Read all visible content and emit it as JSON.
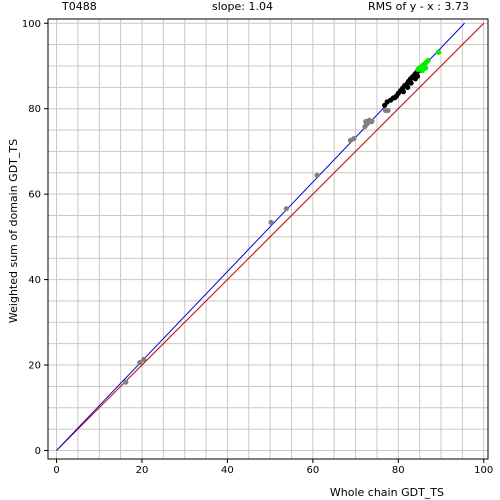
{
  "header": {
    "id_label": "T0488",
    "slope_label": "slope: 1.04",
    "rms_label": "RMS of  y - x : 3.73"
  },
  "chart_data": {
    "type": "scatter",
    "xlabel": "Whole chain GDT_TS",
    "ylabel": "Weighted sum of domain GDT_TS",
    "xlim": [
      -2,
      101
    ],
    "ylim": [
      -2,
      101
    ],
    "x_ticks": [
      0,
      20,
      40,
      60,
      80,
      100
    ],
    "y_ticks": [
      0,
      20,
      40,
      60,
      80,
      100
    ],
    "grid": true,
    "minor_grid_step": 5,
    "diagonal_line": {
      "from": [
        0,
        0
      ],
      "to": [
        100,
        100
      ],
      "color": "#cc0000"
    },
    "fit_line": {
      "from": [
        0,
        0
      ],
      "to": [
        95.5,
        100
      ],
      "slope": 1.04,
      "color": "#0000cc"
    },
    "series": [
      {
        "color": "#808080",
        "points": [
          [
            16.2,
            16.0
          ],
          [
            19.5,
            20.6
          ],
          [
            20.4,
            21.3
          ],
          [
            50.2,
            53.4
          ],
          [
            53.8,
            56.6
          ],
          [
            61.0,
            64.4
          ],
          [
            68.8,
            72.6
          ],
          [
            69.6,
            73.0
          ],
          [
            72.2,
            75.8
          ],
          [
            72.6,
            76.4
          ],
          [
            73.0,
            76.8
          ],
          [
            72.4,
            77.0
          ],
          [
            73.2,
            77.3
          ],
          [
            73.8,
            77.0
          ],
          [
            77.0,
            79.6
          ],
          [
            77.6,
            79.6
          ]
        ]
      },
      {
        "color": "#000000",
        "points": [
          [
            76.8,
            80.8
          ],
          [
            77.4,
            81.6
          ],
          [
            78.2,
            82.0
          ],
          [
            78.8,
            82.5
          ],
          [
            79.6,
            83.0
          ],
          [
            80.0,
            83.6
          ],
          [
            80.5,
            84.2
          ],
          [
            81.0,
            84.8
          ],
          [
            81.5,
            85.4
          ],
          [
            82.0,
            85.8
          ],
          [
            82.4,
            86.4
          ],
          [
            82.8,
            86.9
          ],
          [
            83.2,
            87.3
          ],
          [
            83.6,
            87.7
          ],
          [
            84.0,
            88.2
          ],
          [
            84.4,
            88.6
          ],
          [
            84.0,
            87.0
          ],
          [
            84.5,
            87.6
          ],
          [
            83.0,
            86.0
          ],
          [
            85.0,
            89.0
          ],
          [
            82.2,
            85.0
          ],
          [
            79.2,
            82.6
          ],
          [
            81.2,
            84.0
          ]
        ]
      },
      {
        "color": "#00ee00",
        "points": [
          [
            84.6,
            89.2
          ],
          [
            85.0,
            89.6
          ],
          [
            85.4,
            89.8
          ],
          [
            85.8,
            90.2
          ],
          [
            86.2,
            90.5
          ],
          [
            86.6,
            90.9
          ],
          [
            87.0,
            91.3
          ],
          [
            85.6,
            88.9
          ],
          [
            86.4,
            89.5
          ],
          [
            89.4,
            93.2
          ]
        ]
      }
    ]
  }
}
